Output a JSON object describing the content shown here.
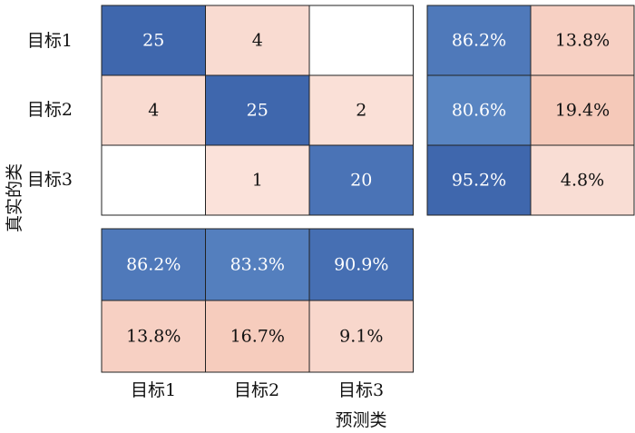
{
  "chart_data": {
    "type": "heatmap",
    "ylabel": "真实的类",
    "xlabel": "预测类",
    "row_labels": [
      "目标1",
      "目标2",
      "目标3"
    ],
    "col_labels": [
      "目标1",
      "目标2",
      "目标3"
    ],
    "matrix": [
      [
        25,
        4,
        null
      ],
      [
        4,
        25,
        2
      ],
      [
        null,
        1,
        20
      ]
    ],
    "row_summary": [
      [
        "86.2%",
        "13.8%"
      ],
      [
        "80.6%",
        "19.4%"
      ],
      [
        "95.2%",
        "4.8%"
      ]
    ],
    "column_summary": [
      [
        "86.2%",
        "83.3%",
        "90.9%"
      ],
      [
        "13.8%",
        "16.7%",
        "9.1%"
      ]
    ],
    "colors": {
      "blue_high": "#3f67ad",
      "blue_mid": "#5a86c3",
      "pink_light": "#fbe4dd",
      "pink_mid": "#f5c9b9",
      "empty": "#ffffff"
    }
  }
}
